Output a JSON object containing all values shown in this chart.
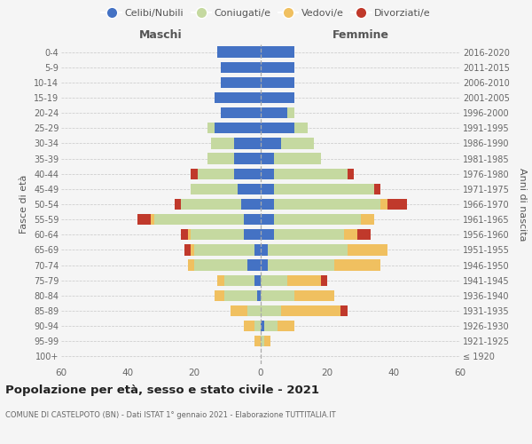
{
  "age_groups": [
    "100+",
    "95-99",
    "90-94",
    "85-89",
    "80-84",
    "75-79",
    "70-74",
    "65-69",
    "60-64",
    "55-59",
    "50-54",
    "45-49",
    "40-44",
    "35-39",
    "30-34",
    "25-29",
    "20-24",
    "15-19",
    "10-14",
    "5-9",
    "0-4"
  ],
  "birth_years": [
    "≤ 1920",
    "1921-1925",
    "1926-1930",
    "1931-1935",
    "1936-1940",
    "1941-1945",
    "1946-1950",
    "1951-1955",
    "1956-1960",
    "1961-1965",
    "1966-1970",
    "1971-1975",
    "1976-1980",
    "1981-1985",
    "1986-1990",
    "1991-1995",
    "1996-2000",
    "2001-2005",
    "2006-2010",
    "2011-2015",
    "2016-2020"
  ],
  "colors": {
    "celibe": "#4472c4",
    "coniugato": "#c5d9a0",
    "vedovo": "#f0c060",
    "divorziato": "#c0392b"
  },
  "maschi": {
    "celibe": [
      0,
      0,
      0,
      0,
      1,
      2,
      4,
      2,
      5,
      5,
      6,
      7,
      8,
      8,
      8,
      14,
      12,
      14,
      12,
      12,
      13
    ],
    "coniugato": [
      0,
      0,
      2,
      4,
      10,
      9,
      16,
      18,
      16,
      27,
      18,
      14,
      11,
      8,
      7,
      2,
      0,
      0,
      0,
      0,
      0
    ],
    "vedovo": [
      0,
      2,
      3,
      5,
      3,
      2,
      2,
      1,
      1,
      1,
      0,
      0,
      0,
      0,
      0,
      0,
      0,
      0,
      0,
      0,
      0
    ],
    "divorziato": [
      0,
      0,
      0,
      0,
      0,
      0,
      0,
      2,
      2,
      4,
      2,
      0,
      2,
      0,
      0,
      0,
      0,
      0,
      0,
      0,
      0
    ]
  },
  "femmine": {
    "nubile": [
      0,
      0,
      1,
      0,
      0,
      0,
      2,
      2,
      4,
      4,
      4,
      4,
      4,
      4,
      6,
      10,
      8,
      10,
      10,
      10,
      10
    ],
    "coniugata": [
      0,
      1,
      4,
      6,
      10,
      8,
      20,
      24,
      21,
      26,
      32,
      30,
      22,
      14,
      10,
      4,
      2,
      0,
      0,
      0,
      0
    ],
    "vedova": [
      0,
      2,
      5,
      18,
      12,
      10,
      14,
      12,
      4,
      4,
      2,
      0,
      0,
      0,
      0,
      0,
      0,
      0,
      0,
      0,
      0
    ],
    "divorziata": [
      0,
      0,
      0,
      2,
      0,
      2,
      0,
      0,
      4,
      0,
      6,
      2,
      2,
      0,
      0,
      0,
      0,
      0,
      0,
      0,
      0
    ]
  },
  "xlim": 60,
  "title": "Popolazione per età, sesso e stato civile - 2021",
  "subtitle": "COMUNE DI CASTELPOTO (BN) - Dati ISTAT 1° gennaio 2021 - Elaborazione TUTTITALIA.IT",
  "ylabel_left": "Fasce di età",
  "ylabel_right": "Anni di nascita",
  "xlabel_maschi": "Maschi",
  "xlabel_femmine": "Femmine",
  "legend_labels": [
    "Celibi/Nubili",
    "Coniugati/e",
    "Vedovi/e",
    "Divorziati/e"
  ],
  "bg_color": "#f5f5f5"
}
